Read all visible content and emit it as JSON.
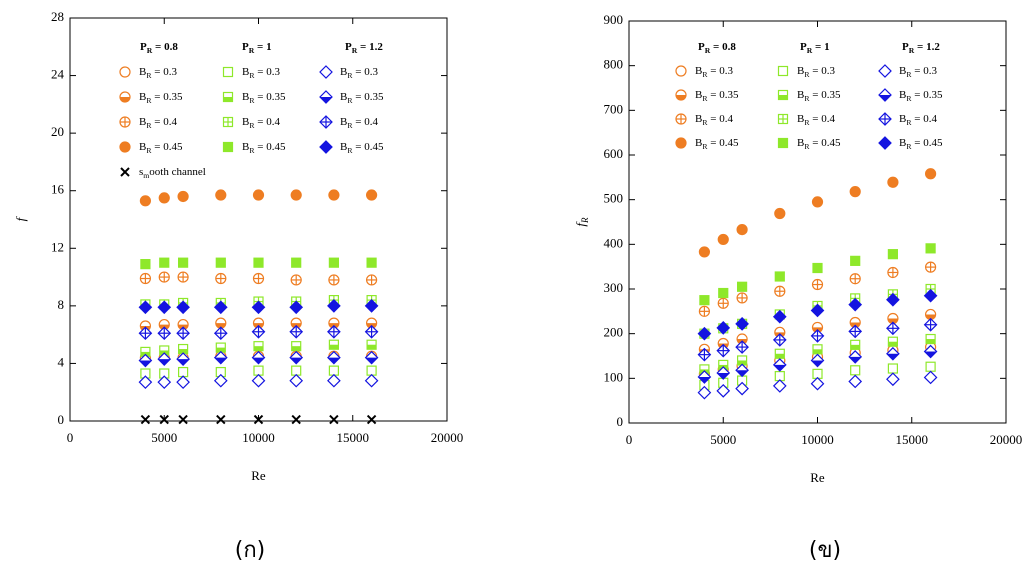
{
  "chart_data": [
    {
      "type": "scatter",
      "caption": "(ก)",
      "xlabel": "Re",
      "ylabel": "f",
      "xlim": [
        0,
        20000
      ],
      "xticks": [
        0,
        5000,
        10000,
        15000,
        20000
      ],
      "ylim": [
        0,
        28
      ],
      "yticks": [
        0,
        4,
        8,
        12,
        16,
        20,
        24,
        28
      ],
      "legend_columns": [
        "PR = 0.8",
        "PR = 1",
        "PR = 1.2"
      ],
      "x": [
        4000,
        5000,
        6000,
        8000,
        10000,
        12000,
        14000,
        16000
      ],
      "series": [
        {
          "name": "BR = 0.3",
          "color": "#ee7d22",
          "marker": "circle-open",
          "values": [
            4.4,
            4.4,
            4.4,
            4.5,
            4.5,
            4.5,
            4.5,
            4.5
          ]
        },
        {
          "name": "BR = 0.35",
          "color": "#ee7d22",
          "marker": "circle-half",
          "values": [
            6.6,
            6.7,
            6.7,
            6.8,
            6.8,
            6.8,
            6.8,
            6.8
          ]
        },
        {
          "name": "BR = 0.4",
          "color": "#ee7d22",
          "marker": "circle-cross",
          "values": [
            9.9,
            10.0,
            10.0,
            9.9,
            9.9,
            9.8,
            9.8,
            9.8
          ]
        },
        {
          "name": "BR = 0.45",
          "color": "#ee7d22",
          "marker": "circle-filled",
          "values": [
            15.3,
            15.5,
            15.6,
            15.7,
            15.7,
            15.7,
            15.7,
            15.7
          ]
        },
        {
          "name": "BR = 0.3",
          "color": "#8ee82a",
          "marker": "square-open",
          "values": [
            3.3,
            3.3,
            3.4,
            3.4,
            3.5,
            3.5,
            3.5,
            3.5
          ]
        },
        {
          "name": "BR = 0.35",
          "color": "#8ee82a",
          "marker": "square-half",
          "values": [
            4.8,
            4.9,
            5.0,
            5.1,
            5.2,
            5.2,
            5.3,
            5.3
          ]
        },
        {
          "name": "BR = 0.4",
          "color": "#8ee82a",
          "marker": "square-cross",
          "values": [
            8.1,
            8.1,
            8.2,
            8.2,
            8.3,
            8.3,
            8.4,
            8.4
          ]
        },
        {
          "name": "BR = 0.45",
          "color": "#8ee82a",
          "marker": "square-filled",
          "values": [
            10.9,
            11.0,
            11.0,
            11.0,
            11.0,
            11.0,
            11.0,
            11.0
          ]
        },
        {
          "name": "BR = 0.3",
          "color": "#1414e0",
          "marker": "diamond-open",
          "values": [
            2.7,
            2.7,
            2.7,
            2.8,
            2.8,
            2.8,
            2.8,
            2.8
          ]
        },
        {
          "name": "BR = 0.35",
          "color": "#1414e0",
          "marker": "diamond-half",
          "values": [
            4.2,
            4.3,
            4.3,
            4.4,
            4.4,
            4.4,
            4.4,
            4.4
          ]
        },
        {
          "name": "BR = 0.4",
          "color": "#1414e0",
          "marker": "diamond-cross",
          "values": [
            6.1,
            6.1,
            6.1,
            6.1,
            6.2,
            6.2,
            6.2,
            6.2
          ]
        },
        {
          "name": "BR = 0.45",
          "color": "#1414e0",
          "marker": "diamond-filled",
          "values": [
            7.9,
            7.9,
            7.9,
            7.9,
            7.9,
            7.9,
            8.0,
            8.0
          ]
        },
        {
          "name": "smooth channel",
          "color": "#000000",
          "marker": "x",
          "values": [
            0.1,
            0.1,
            0.1,
            0.1,
            0.1,
            0.1,
            0.1,
            0.1
          ]
        }
      ]
    },
    {
      "type": "scatter",
      "caption": "(ข)",
      "xlabel": "Re",
      "ylabel": "fR",
      "xlim": [
        0,
        20000
      ],
      "xticks": [
        0,
        5000,
        10000,
        15000,
        20000
      ],
      "ylim": [
        0,
        900
      ],
      "yticks": [
        0,
        100,
        200,
        300,
        400,
        500,
        600,
        700,
        800,
        900
      ],
      "legend_columns": [
        "PR = 0.8",
        "PR = 1",
        "PR = 1.2"
      ],
      "x": [
        4000,
        5000,
        6000,
        8000,
        10000,
        12000,
        14000,
        16000
      ],
      "series": [
        {
          "name": "BR = 0.3",
          "color": "#ee7d22",
          "marker": "circle-open",
          "values": [
            110,
            120,
            128,
            140,
            148,
            157,
            163,
            170
          ]
        },
        {
          "name": "BR = 0.35",
          "color": "#ee7d22",
          "marker": "circle-half",
          "values": [
            165,
            178,
            188,
            203,
            214,
            225,
            234,
            243
          ]
        },
        {
          "name": "BR = 0.4",
          "color": "#ee7d22",
          "marker": "circle-cross",
          "values": [
            250,
            268,
            280,
            295,
            310,
            323,
            337,
            349
          ]
        },
        {
          "name": "BR = 0.45",
          "color": "#ee7d22",
          "marker": "circle-filled",
          "values": [
            383,
            411,
            433,
            469,
            495,
            518,
            539,
            558
          ]
        },
        {
          "name": "BR = 0.3",
          "color": "#8ee82a",
          "marker": "square-open",
          "values": [
            85,
            90,
            95,
            105,
            110,
            118,
            122,
            126
          ]
        },
        {
          "name": "BR = 0.35",
          "color": "#8ee82a",
          "marker": "square-half",
          "values": [
            120,
            130,
            140,
            155,
            165,
            175,
            182,
            188
          ]
        },
        {
          "name": "BR = 0.4",
          "color": "#8ee82a",
          "marker": "square-cross",
          "values": [
            200,
            212,
            222,
            243,
            262,
            279,
            288,
            300
          ]
        },
        {
          "name": "BR = 0.45",
          "color": "#8ee82a",
          "marker": "square-filled",
          "values": [
            275,
            291,
            305,
            328,
            347,
            363,
            378,
            391
          ]
        },
        {
          "name": "BR = 0.3",
          "color": "#1414e0",
          "marker": "diamond-open",
          "values": [
            68,
            72,
            77,
            83,
            88,
            93,
            98,
            102
          ]
        },
        {
          "name": "BR = 0.35",
          "color": "#1414e0",
          "marker": "diamond-half",
          "values": [
            103,
            112,
            118,
            130,
            140,
            148,
            155,
            160
          ]
        },
        {
          "name": "BR = 0.4",
          "color": "#1414e0",
          "marker": "diamond-cross",
          "values": [
            153,
            162,
            170,
            186,
            195,
            205,
            212,
            220
          ]
        },
        {
          "name": "BR = 0.45",
          "color": "#1414e0",
          "marker": "diamond-filled",
          "values": [
            200,
            213,
            222,
            238,
            252,
            265,
            276,
            285
          ]
        }
      ]
    }
  ]
}
